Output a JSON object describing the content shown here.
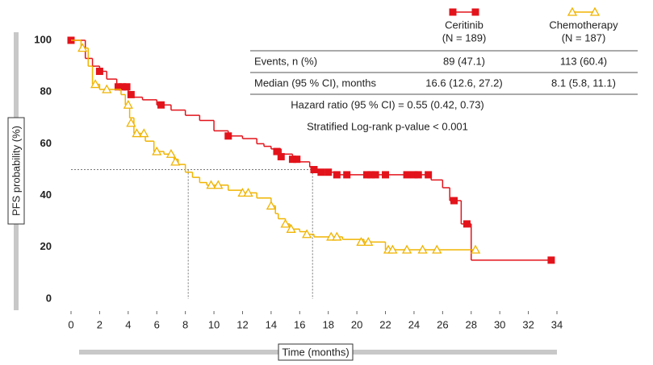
{
  "chart_data": {
    "type": "km",
    "xlabel": "Time (months)",
    "ylabel": "PFS probability (%)",
    "xlim": [
      0,
      34
    ],
    "ylim": [
      0,
      100
    ],
    "xticks": [
      0,
      2,
      4,
      6,
      8,
      10,
      12,
      14,
      16,
      18,
      20,
      22,
      24,
      26,
      28,
      30,
      32,
      34
    ],
    "yticks": [
      0,
      20,
      40,
      60,
      80,
      100
    ],
    "grid": false,
    "reference_lines": {
      "y": 50,
      "x": [
        8.2,
        16.9
      ]
    },
    "series": [
      {
        "name": "Ceritinib",
        "n_label": "(N = 189)",
        "color": "#e3131b",
        "marker": "square",
        "x": [
          0,
          1,
          1.5,
          2,
          2.5,
          3.2,
          4,
          4.3,
          5,
          6,
          7,
          8,
          9,
          10,
          11,
          12,
          13,
          13.5,
          14,
          14.7,
          15.5,
          16,
          16.7,
          17.2,
          17.7,
          18.5,
          25.2,
          26,
          26.5,
          27.3,
          28,
          33.6
        ],
        "values": [
          100,
          93,
          90,
          88,
          85,
          82,
          80,
          78,
          77,
          75,
          73,
          71,
          69,
          65,
          63,
          62,
          60,
          59,
          58,
          56,
          54,
          53,
          51,
          50,
          49,
          48,
          46,
          43,
          38,
          29,
          15,
          15
        ],
        "censored": {
          "x": [
            0,
            2,
            3.3,
            3.6,
            3.9,
            4.2,
            6.3,
            11,
            14.4,
            14.7,
            15.5,
            15.8,
            17,
            17.5,
            18,
            18.6,
            19.3,
            20.7,
            21,
            21.3,
            22,
            23.5,
            24,
            24.3,
            25,
            26.8,
            27.7,
            33.6
          ],
          "values": [
            100,
            88,
            82,
            82,
            82,
            79,
            75,
            63,
            57,
            55,
            54,
            54,
            50,
            49,
            49,
            48,
            48,
            48,
            48,
            48,
            48,
            48,
            48,
            48,
            48,
            38,
            29,
            15
          ]
        }
      },
      {
        "name": "Chemotherapy",
        "n_label": "(N = 187)",
        "color": "#f0b400",
        "marker": "triangle",
        "x": [
          0,
          0.7,
          1.2,
          1.5,
          2,
          3.5,
          3.8,
          4.1,
          4.4,
          5.2,
          5.8,
          6.5,
          7.2,
          7.5,
          8,
          8.5,
          9,
          9.5,
          11,
          12,
          13,
          14,
          14.3,
          14.5,
          15,
          15.3,
          16,
          16.5,
          17,
          19,
          20.5,
          22,
          28.3
        ],
        "values": [
          100,
          97,
          90,
          83,
          81,
          79,
          75,
          70,
          64,
          61,
          57,
          56,
          54,
          52,
          49,
          47,
          45,
          44,
          42,
          41,
          39,
          36,
          33,
          31,
          29,
          27,
          26,
          25,
          24,
          23,
          22,
          19,
          19
        ],
        "censored": {
          "x": [
            0.8,
            1.7,
            2.5,
            4,
            4.2,
            4.6,
            5.1,
            6,
            7,
            7.3,
            9.8,
            10.3,
            12,
            12.4,
            14,
            15,
            15.4,
            16.5,
            18.2,
            18.6,
            20.3,
            20.8,
            22.2,
            22.5,
            23.5,
            24.6,
            25.6,
            28.3
          ],
          "values": [
            97,
            83,
            81,
            75,
            68,
            64,
            64,
            57,
            56,
            53,
            44,
            44,
            41,
            41,
            36,
            29,
            27,
            25,
            24,
            24,
            22,
            22,
            19,
            19,
            19,
            19,
            19,
            19
          ]
        }
      }
    ],
    "table": {
      "rows": [
        [
          "Events, n (%)",
          "89 (47.1)",
          "113 (60.4)"
        ],
        [
          "Median (95 % CI), months",
          "16.6 (12.6, 27.2)",
          "8.1 (5.8, 11.1)"
        ]
      ],
      "notes": [
        "Hazard ratio (95 % CI) = 0.55 (0.42, 0.73)",
        "Stratified Log-rank p-value < 0.001"
      ]
    }
  }
}
